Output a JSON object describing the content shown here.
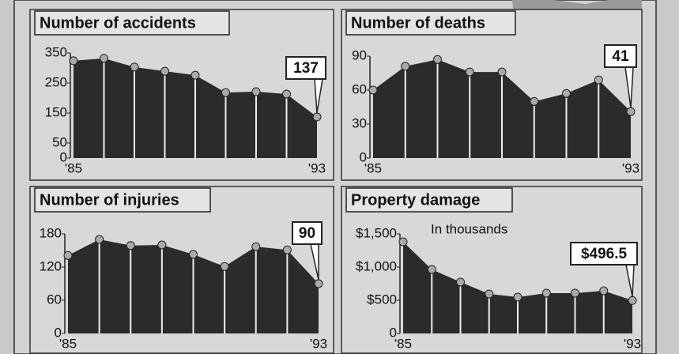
{
  "chart_data": [
    {
      "type": "area",
      "title": "Number of accidents",
      "color": "#2b2b2b",
      "categories": [
        "'85",
        null,
        null,
        null,
        null,
        null,
        null,
        null,
        "'93"
      ],
      "values": [
        324,
        332,
        303,
        289,
        276,
        218,
        221,
        213,
        137
      ],
      "ylim": [
        0,
        350
      ],
      "yticks": [
        0,
        50,
        150,
        250,
        350
      ]
    },
    {
      "type": "area",
      "title": "Number of deaths",
      "color": "#2b2b2b",
      "categories": [
        "'85",
        null,
        null,
        null,
        null,
        null,
        null,
        null,
        "'93"
      ],
      "values": [
        60,
        81,
        87,
        76,
        76,
        50,
        57,
        69,
        41
      ],
      "ylim": [
        0,
        90
      ],
      "yticks": [
        0,
        30,
        60,
        90
      ]
    },
    {
      "type": "area",
      "title": "Number of injuries",
      "color": "#2b2b2b",
      "categories": [
        "'85",
        null,
        null,
        null,
        null,
        null,
        null,
        null,
        "'93"
      ],
      "values": [
        141,
        170,
        159,
        160,
        143,
        121,
        157,
        151,
        90
      ],
      "ylim": [
        0,
        180
      ],
      "yticks": [
        0,
        60,
        120,
        180
      ]
    },
    {
      "type": "area",
      "title": "Property damage",
      "subtitle": "In thousands",
      "color": "#2b2b2b",
      "categories": [
        "'85",
        null,
        null,
        null,
        null,
        null,
        null,
        null,
        "'93"
      ],
      "values": [
        1381,
        964,
        774,
        595,
        548,
        607,
        607,
        643,
        496.5
      ],
      "value_labels": [
        null,
        null,
        null,
        null,
        null,
        null,
        null,
        null,
        "$496.5"
      ],
      "ylim": [
        0,
        1500
      ],
      "yticks": [
        0,
        {
          "value": 500,
          "label": "$500"
        },
        {
          "value": 1000,
          "label": "$1,000"
        },
        {
          "value": 1500,
          "label": "$1,500"
        }
      ]
    }
  ]
}
